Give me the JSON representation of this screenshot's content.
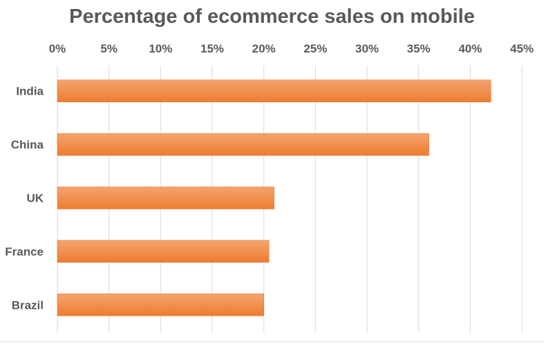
{
  "chart_data": {
    "type": "bar",
    "orientation": "horizontal",
    "title": "Percentage of ecommerce sales on mobile",
    "categories": [
      "India",
      "China",
      "UK",
      "France",
      "Brazil"
    ],
    "values": [
      42,
      36,
      21,
      20.5,
      20
    ],
    "unit": "%",
    "xlim": [
      0,
      45
    ],
    "x_ticks": [
      "0%",
      "5%",
      "10%",
      "15%",
      "20%",
      "25%",
      "30%",
      "35%",
      "40%",
      "45%"
    ],
    "x_axis_position": "top",
    "grid": true,
    "legend": "none",
    "bar_color": "#ED7D31",
    "bar_gradient_light": "#F4A46E"
  }
}
